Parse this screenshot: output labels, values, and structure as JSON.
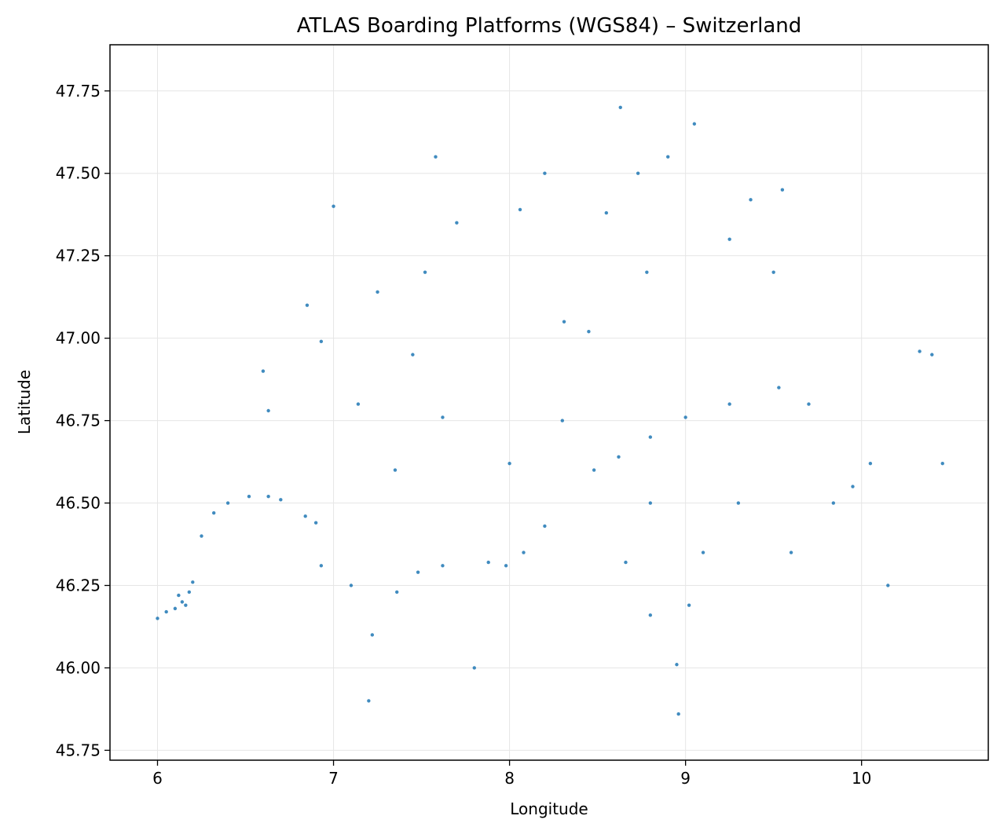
{
  "chart_data": {
    "type": "scatter",
    "title": "ATLAS Boarding Platforms (WGS84) – Switzerland",
    "xlabel": "Longitude",
    "ylabel": "Latitude",
    "xlim": [
      5.73,
      10.72
    ],
    "ylim": [
      45.72,
      47.89
    ],
    "xticks": [
      6,
      7,
      8,
      9,
      10
    ],
    "xtick_labels": [
      "6",
      "7",
      "8",
      "9",
      "10"
    ],
    "yticks": [
      45.75,
      46.0,
      46.25,
      46.5,
      46.75,
      47.0,
      47.25,
      47.5,
      47.75
    ],
    "ytick_labels": [
      "45.75",
      "46.00",
      "46.25",
      "46.50",
      "46.75",
      "47.00",
      "47.25",
      "47.50",
      "47.75"
    ],
    "grid": true,
    "color": "#1f77b4",
    "series": [
      {
        "points": [
          [
            6.14,
            46.2
          ],
          [
            6.12,
            46.22
          ],
          [
            6.16,
            46.19
          ],
          [
            6.1,
            46.18
          ],
          [
            6.18,
            46.23
          ],
          [
            6.2,
            46.26
          ],
          [
            6.05,
            46.17
          ],
          [
            6.25,
            46.4
          ],
          [
            6.32,
            46.47
          ],
          [
            6.4,
            46.5
          ],
          [
            6.52,
            46.52
          ],
          [
            6.63,
            46.52
          ],
          [
            6.7,
            46.51
          ],
          [
            6.84,
            46.46
          ],
          [
            6.9,
            46.44
          ],
          [
            6.93,
            46.31
          ],
          [
            7.1,
            46.25
          ],
          [
            7.22,
            46.1
          ],
          [
            7.36,
            46.23
          ],
          [
            7.48,
            46.29
          ],
          [
            7.62,
            46.31
          ],
          [
            7.88,
            46.32
          ],
          [
            7.98,
            46.31
          ],
          [
            8.08,
            46.35
          ],
          [
            8.2,
            46.43
          ],
          [
            8.48,
            46.6
          ],
          [
            8.62,
            46.64
          ],
          [
            8.8,
            46.7
          ],
          [
            9.0,
            46.76
          ],
          [
            9.25,
            46.8
          ],
          [
            9.53,
            46.85
          ],
          [
            9.7,
            46.8
          ],
          [
            9.84,
            46.5
          ],
          [
            9.95,
            46.55
          ],
          [
            10.05,
            46.62
          ],
          [
            10.33,
            46.96
          ],
          [
            10.4,
            46.95
          ],
          [
            10.46,
            46.62
          ],
          [
            9.3,
            46.5
          ],
          [
            9.1,
            46.35
          ],
          [
            9.02,
            46.19
          ],
          [
            8.95,
            46.01
          ],
          [
            8.96,
            45.86
          ],
          [
            8.8,
            46.16
          ],
          [
            8.66,
            46.32
          ],
          [
            8.8,
            46.5
          ],
          [
            6.63,
            46.78
          ],
          [
            6.93,
            46.99
          ],
          [
            7.14,
            46.8
          ],
          [
            7.45,
            46.95
          ],
          [
            7.62,
            46.76
          ],
          [
            7.25,
            47.14
          ],
          [
            7.58,
            47.55
          ],
          [
            7.52,
            47.2
          ],
          [
            7.7,
            47.35
          ],
          [
            8.06,
            47.39
          ],
          [
            8.31,
            47.05
          ],
          [
            8.55,
            47.38
          ],
          [
            8.73,
            47.5
          ],
          [
            8.63,
            47.7
          ],
          [
            9.05,
            47.65
          ],
          [
            9.37,
            47.42
          ],
          [
            9.55,
            47.45
          ],
          [
            9.5,
            47.2
          ],
          [
            9.25,
            47.3
          ],
          [
            8.9,
            47.55
          ],
          [
            8.2,
            47.5
          ],
          [
            7.0,
            47.4
          ],
          [
            6.85,
            47.1
          ],
          [
            6.6,
            46.9
          ],
          [
            6.0,
            46.15
          ],
          [
            7.8,
            46.0
          ],
          [
            7.2,
            45.9
          ],
          [
            9.6,
            46.35
          ],
          [
            10.15,
            46.25
          ],
          [
            7.35,
            46.6
          ],
          [
            8.3,
            46.75
          ],
          [
            8.0,
            46.62
          ],
          [
            8.78,
            47.2
          ],
          [
            8.45,
            47.02
          ]
        ]
      }
    ]
  }
}
